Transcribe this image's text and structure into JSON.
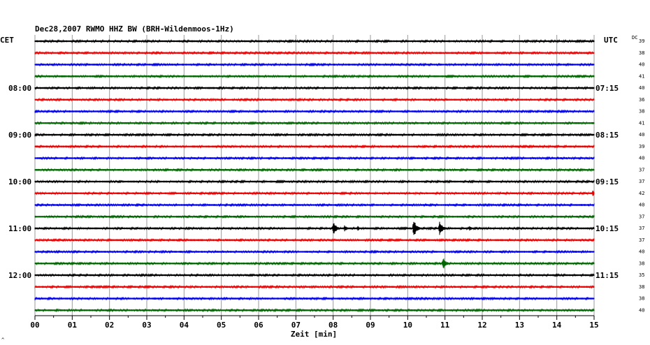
{
  "chart_data": {
    "type": "line",
    "title": "Dec28,2007   RWMO HHZ BW (BRH-Wildenmoos-1Hz)",
    "left_header": "CET",
    "right_header": "UTC",
    "dc_label": "DC",
    "xlabel": "Zeit [min]",
    "x_range": [
      0,
      15
    ],
    "x_ticks": [
      "00",
      "01",
      "02",
      "03",
      "04",
      "05",
      "06",
      "07",
      "08",
      "09",
      "10",
      "11",
      "12",
      "13",
      "14",
      "15"
    ],
    "grid": true,
    "trace_colors": [
      "#000000",
      "#ee0000",
      "#0000ee",
      "#006600"
    ],
    "cet_labels": [
      {
        "row": 4,
        "text": "08:00"
      },
      {
        "row": 8,
        "text": "09:00"
      },
      {
        "row": 12,
        "text": "10:00"
      },
      {
        "row": 16,
        "text": "11:00"
      },
      {
        "row": 20,
        "text": "12:00"
      }
    ],
    "utc_labels": [
      {
        "row": 4,
        "text": "07:15"
      },
      {
        "row": 8,
        "text": "08:15"
      },
      {
        "row": 12,
        "text": "09:15"
      },
      {
        "row": 16,
        "text": "10:15"
      },
      {
        "row": 20,
        "text": "11:15"
      }
    ],
    "dc_offsets": [
      39,
      38,
      40,
      41,
      40,
      36,
      38,
      41,
      40,
      39,
      40,
      37,
      37,
      42,
      40,
      37,
      37,
      37,
      40,
      38,
      35,
      38,
      38,
      40
    ],
    "events": [
      {
        "row": 16,
        "minute": 8.0,
        "amplitude": 12
      },
      {
        "row": 16,
        "minute": 8.3,
        "amplitude": 5
      },
      {
        "row": 16,
        "minute": 8.65,
        "amplitude": 4
      },
      {
        "row": 16,
        "minute": 10.15,
        "amplitude": 16
      },
      {
        "row": 16,
        "minute": 10.85,
        "amplitude": 13
      },
      {
        "row": 16,
        "minute": 11.65,
        "amplitude": 4
      },
      {
        "row": 19,
        "minute": 10.95,
        "amplitude": 9
      },
      {
        "row": 13,
        "minute": 14.95,
        "amplitude": 5
      }
    ],
    "corner_mark": "^"
  }
}
